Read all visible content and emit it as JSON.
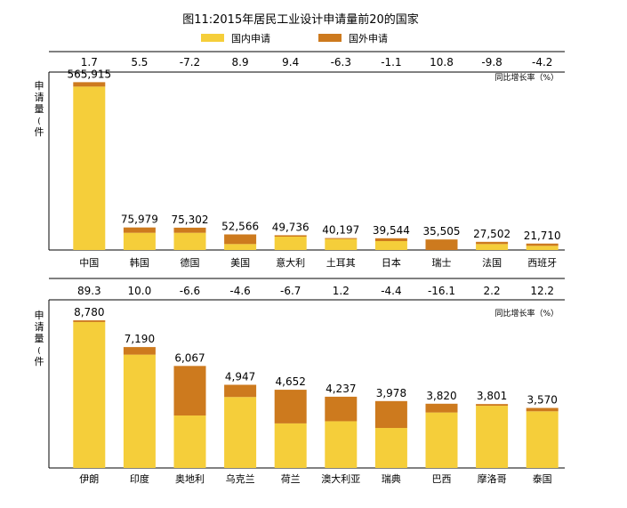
{
  "title": "图11:2015年居民工业设计申请量前20的国家",
  "legend": {
    "domestic": "国内申请",
    "foreign": "国外申请"
  },
  "colors": {
    "domestic": "#f5ce3a",
    "foreign": "#cd7a1e",
    "axis": "#000000"
  },
  "chart_data": [
    {
      "type": "bar",
      "stacked": true,
      "categories": [
        "中国",
        "韩国",
        "德国",
        "美国",
        "意大利",
        "土耳其",
        "日本",
        "瑞士",
        "法国",
        "西班牙"
      ],
      "totals": [
        "565,915",
        "75,979",
        "75,302",
        "52,566",
        "49,736",
        "40,197",
        "39,544",
        "35,505",
        "27,502",
        "21,710"
      ],
      "growth": [
        "1.7",
        "5.5",
        "-7.2",
        "8.9",
        "9.4",
        "-6.3",
        "-1.1",
        "10.8",
        "-9.8",
        "-4.2"
      ],
      "growth_label": "同比增长率（%）",
      "ylabel": "申请量(件",
      "series": [
        {
          "name": "国内申请",
          "values": [
            551000,
            58000,
            58000,
            20000,
            45000,
            37000,
            30000,
            0,
            20000,
            14000
          ]
        },
        {
          "name": "国外申请",
          "values": [
            14915,
            17979,
            17302,
            32566,
            4736,
            3197,
            9544,
            35505,
            7502,
            7710
          ]
        }
      ],
      "ylim": [
        0,
        600000
      ]
    },
    {
      "type": "bar",
      "stacked": true,
      "categories": [
        "伊朗",
        "印度",
        "奥地利",
        "乌克兰",
        "荷兰",
        "澳大利亚",
        "瑞典",
        "巴西",
        "摩洛哥",
        "泰国"
      ],
      "totals": [
        "8,780",
        "7,190",
        "6,067",
        "4,947",
        "4,652",
        "4,237",
        "3,978",
        "3,820",
        "3,801",
        "3,570"
      ],
      "growth": [
        "89.3",
        "10.0",
        "-6.6",
        "-4.6",
        "-6.7",
        "1.2",
        "-4.4",
        "-16.1",
        "2.2",
        "12.2"
      ],
      "growth_label": "同比增长率（%）",
      "ylabel": "申请量(件",
      "series": [
        {
          "name": "国内申请",
          "values": [
            8680,
            6740,
            3120,
            4220,
            2650,
            2780,
            2380,
            3300,
            3700,
            3370
          ]
        },
        {
          "name": "国外申请",
          "values": [
            100,
            450,
            2947,
            727,
            2002,
            1457,
            1598,
            520,
            101,
            200
          ]
        }
      ],
      "ylim": [
        0,
        10000
      ]
    }
  ]
}
